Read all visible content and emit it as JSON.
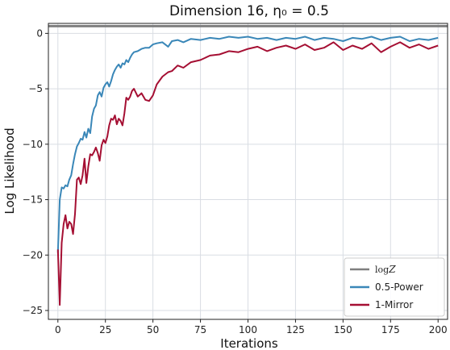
{
  "chart_data": {
    "type": "line",
    "title": "Dimension 16, η₀ = 0.5",
    "xlabel": "Iterations",
    "ylabel": "Log Likelihood",
    "xlim": [
      -5,
      205
    ],
    "ylim": [
      -25.8,
      0.9
    ],
    "xticks": [
      0,
      25,
      50,
      75,
      100,
      125,
      150,
      175,
      200
    ],
    "yticks": [
      0,
      -5,
      -10,
      -15,
      -20,
      -25
    ],
    "xtick_labels": [
      "0",
      "25",
      "50",
      "75",
      "100",
      "125",
      "150",
      "175",
      "200"
    ],
    "ytick_labels": [
      "0",
      "−5",
      "−10",
      "−15",
      "−20",
      "−25"
    ],
    "grid": true,
    "legend_placement": "lower-right",
    "reference_line": {
      "name": "logZ",
      "y": 0.65,
      "color": "#7f7f7f"
    },
    "series": [
      {
        "name": "0.5-Power",
        "color": "#3a87b8",
        "x": [
          0,
          1,
          2,
          3,
          4,
          5,
          6,
          7,
          8,
          9,
          10,
          11,
          12,
          13,
          14,
          15,
          16,
          17,
          18,
          19,
          20,
          21,
          22,
          23,
          24,
          25,
          26,
          27,
          28,
          29,
          30,
          31,
          32,
          33,
          34,
          35,
          36,
          37,
          38,
          39,
          40,
          42,
          44,
          46,
          48,
          50,
          52,
          55,
          58,
          60,
          63,
          66,
          70,
          75,
          80,
          85,
          90,
          95,
          100,
          105,
          110,
          115,
          120,
          125,
          130,
          135,
          140,
          145,
          150,
          155,
          160,
          165,
          170,
          175,
          180,
          185,
          190,
          195,
          200
        ],
        "values": [
          -19.8,
          -15.0,
          -13.9,
          -14.0,
          -13.7,
          -13.8,
          -13.2,
          -12.8,
          -11.8,
          -10.9,
          -10.2,
          -9.9,
          -9.5,
          -9.6,
          -8.9,
          -9.4,
          -8.6,
          -9.0,
          -7.5,
          -6.8,
          -6.5,
          -5.6,
          -5.3,
          -5.7,
          -4.9,
          -4.6,
          -4.4,
          -4.8,
          -4.3,
          -3.7,
          -3.3,
          -3.0,
          -2.8,
          -3.1,
          -2.7,
          -2.8,
          -2.4,
          -2.6,
          -2.2,
          -1.9,
          -1.7,
          -1.6,
          -1.4,
          -1.3,
          -1.3,
          -1.0,
          -0.9,
          -0.8,
          -1.2,
          -0.7,
          -0.6,
          -0.8,
          -0.5,
          -0.6,
          -0.4,
          -0.5,
          -0.3,
          -0.4,
          -0.3,
          -0.5,
          -0.4,
          -0.6,
          -0.4,
          -0.5,
          -0.3,
          -0.6,
          -0.4,
          -0.5,
          -0.7,
          -0.4,
          -0.5,
          -0.3,
          -0.6,
          -0.4,
          -0.3,
          -0.7,
          -0.5,
          -0.6,
          -0.4
        ]
      },
      {
        "name": "1-Mirror",
        "color": "#a50f33",
        "x": [
          0,
          1,
          2,
          3,
          4,
          5,
          6,
          7,
          8,
          9,
          10,
          11,
          12,
          13,
          14,
          15,
          16,
          17,
          18,
          19,
          20,
          21,
          22,
          23,
          24,
          25,
          26,
          27,
          28,
          29,
          30,
          31,
          32,
          33,
          34,
          35,
          36,
          37,
          38,
          39,
          40,
          42,
          44,
          46,
          48,
          50,
          52,
          55,
          58,
          60,
          63,
          66,
          70,
          75,
          80,
          85,
          90,
          95,
          100,
          105,
          110,
          115,
          120,
          125,
          130,
          135,
          140,
          145,
          150,
          155,
          160,
          165,
          170,
          175,
          180,
          185,
          190,
          195,
          200
        ],
        "values": [
          -19.5,
          -24.5,
          -18.9,
          -17.2,
          -16.4,
          -17.6,
          -17.0,
          -17.2,
          -18.1,
          -16.3,
          -13.2,
          -13.0,
          -13.6,
          -12.8,
          -11.3,
          -13.5,
          -12.0,
          -10.9,
          -11.0,
          -10.7,
          -10.3,
          -10.8,
          -11.5,
          -10.1,
          -9.6,
          -9.9,
          -9.3,
          -8.3,
          -7.7,
          -7.8,
          -7.4,
          -8.2,
          -7.7,
          -7.9,
          -8.3,
          -7.2,
          -5.8,
          -6.0,
          -5.7,
          -5.2,
          -5.0,
          -5.7,
          -5.4,
          -6.0,
          -6.1,
          -5.6,
          -4.6,
          -3.9,
          -3.5,
          -3.4,
          -2.9,
          -3.1,
          -2.6,
          -2.4,
          -2.0,
          -1.9,
          -1.6,
          -1.7,
          -1.4,
          -1.2,
          -1.6,
          -1.3,
          -1.1,
          -1.4,
          -1.0,
          -1.5,
          -1.3,
          -0.8,
          -1.5,
          -1.1,
          -1.4,
          -0.9,
          -1.7,
          -1.2,
          -0.8,
          -1.3,
          -1.0,
          -1.4,
          -1.1
        ]
      }
    ]
  }
}
